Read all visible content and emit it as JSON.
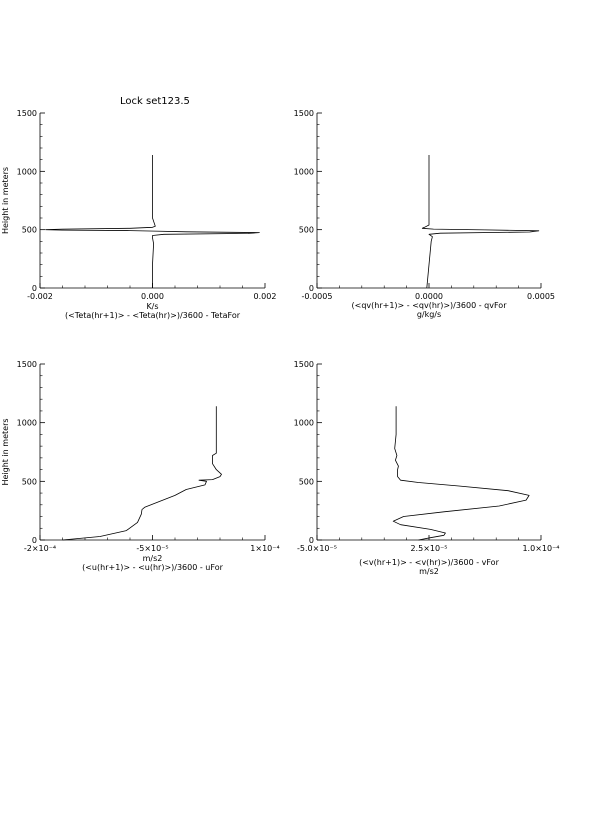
{
  "page_title": "Lock set123.5",
  "ylabel": "Height in meters",
  "chart_data": [
    {
      "type": "line",
      "panel": "top-left",
      "title": "",
      "xlabel": "K/s",
      "caption": "(<Teta(hr+1)> - <Teta(hr)>)/3600 - TetaFor",
      "x_ticks": [
        {
          "value": -0.002,
          "label": "-0.002"
        },
        {
          "value": 0.0,
          "label": "0.000"
        },
        {
          "value": 0.002,
          "label": "0.002"
        }
      ],
      "xlim": [
        -0.002,
        0.002
      ],
      "ylabel": "Height in meters",
      "y_ticks": [
        0,
        500,
        1000,
        1500
      ],
      "ylim": [
        0,
        1500
      ],
      "series": [
        {
          "x": [
            0.0,
            0.0,
            0.0,
            1e-05,
            2e-05,
            0.0,
            0.0,
            0.0002,
            0.0017,
            0.0019,
            0.0006,
            5e-05,
            -0.0004,
            -0.0016,
            -0.0019,
            -0.0016,
            -0.0004,
            0.0,
            5e-05,
            0.0,
            0.0,
            0.0
          ],
          "y": [
            0,
            100,
            200,
            300,
            380,
            430,
            450,
            460,
            468,
            475,
            482,
            488,
            492,
            496,
            500,
            505,
            512,
            520,
            530,
            600,
            900,
            1140
          ]
        }
      ]
    },
    {
      "type": "line",
      "panel": "top-right",
      "title": "",
      "xlabel": "g/kg/s",
      "caption": "(<qv(hr+1)> - <qv(hr)>)/3600 - qvFor",
      "x_ticks": [
        {
          "value": -0.0005,
          "label": "-0.0005"
        },
        {
          "value": 0.0,
          "label": "0.0000"
        },
        {
          "value": 0.0005,
          "label": "0.0005"
        }
      ],
      "xlim": [
        -0.0005,
        0.0005
      ],
      "ylabel": "",
      "y_ticks": [
        0,
        500,
        1000,
        1500
      ],
      "ylim": [
        0,
        1500
      ],
      "series": [
        {
          "x": [
            -1e-05,
            -5e-06,
            0.0,
            5e-06,
            1e-05,
            1.5e-05,
            0.0,
            5e-05,
            0.00045,
            0.00049,
            0.00025,
            2e-05,
            -3e-05,
            -2e-05,
            0.0,
            0.0,
            0.0
          ],
          "y": [
            0,
            100,
            200,
            300,
            400,
            440,
            460,
            470,
            480,
            490,
            498,
            505,
            512,
            520,
            540,
            800,
            1140
          ]
        }
      ]
    },
    {
      "type": "line",
      "panel": "bottom-left",
      "title": "",
      "xlabel": "m/s2",
      "caption": "(<u(hr+1)> - <u(hr)>)/3600 - uFor",
      "x_ticks": [
        {
          "value": -0.0002,
          "label": "-2×10⁻⁴"
        },
        {
          "value": -5e-05,
          "label": "-5×10⁻⁵"
        },
        {
          "value": 0.0001,
          "label": "1×10⁻⁴"
        }
      ],
      "xlim": [
        -0.0002,
        0.0001
      ],
      "ylabel": "Height in meters",
      "y_ticks": [
        0,
        500,
        1000,
        1500
      ],
      "ylim": [
        0,
        1500
      ],
      "series": [
        {
          "x": [
            -0.00017,
            -0.00012,
            -8.5e-05,
            -7e-05,
            -6.5e-05,
            -6.4e-05,
            -6e-05,
            -4e-05,
            -2e-05,
            -5e-06,
            2e-05,
            2.2e-05,
            1.2e-05,
            3e-05,
            4e-05,
            4.2e-05,
            3.5e-05,
            3e-05,
            3e-05,
            3e-05,
            3.5e-05,
            3.5e-05,
            3.5e-05
          ],
          "y": [
            0,
            30,
            80,
            150,
            220,
            260,
            280,
            330,
            380,
            430,
            470,
            500,
            510,
            515,
            540,
            560,
            600,
            650,
            700,
            720,
            740,
            800,
            1140
          ]
        }
      ]
    },
    {
      "type": "line",
      "panel": "bottom-right",
      "title": "",
      "xlabel": "m/s2",
      "caption": "(<v(hr+1)> - <v(hr)>)/3600 - vFor",
      "x_ticks": [
        {
          "value": -5e-05,
          "label": "-5.0×10⁻⁵"
        },
        {
          "value": 2.5e-05,
          "label": "2.5×10⁻⁵"
        },
        {
          "value": 0.0001,
          "label": "1.0×10⁻⁴"
        }
      ],
      "xlim": [
        -5e-05,
        0.0001
      ],
      "ylabel": "",
      "y_ticks": [
        0,
        500,
        1000,
        1500
      ],
      "ylim": [
        0,
        1500
      ],
      "series": [
        {
          "x": [
            1.8e-05,
            2.6e-05,
            3.5e-05,
            3.6e-05,
            2.6e-05,
            6e-06,
            1e-06,
            8e-06,
            3.5e-05,
            7.2e-05,
            9e-05,
            9.2e-05,
            7.8e-05,
            4.5e-05,
            1.8e-05,
            6e-06,
            4e-06,
            4e-06,
            4.5e-06,
            2.5e-06,
            3.5e-06,
            2e-06,
            3e-06,
            3e-06
          ],
          "y": [
            0,
            20,
            40,
            60,
            90,
            130,
            160,
            200,
            240,
            290,
            340,
            380,
            420,
            460,
            490,
            510,
            540,
            600,
            630,
            680,
            720,
            780,
            900,
            1140
          ]
        }
      ]
    }
  ]
}
